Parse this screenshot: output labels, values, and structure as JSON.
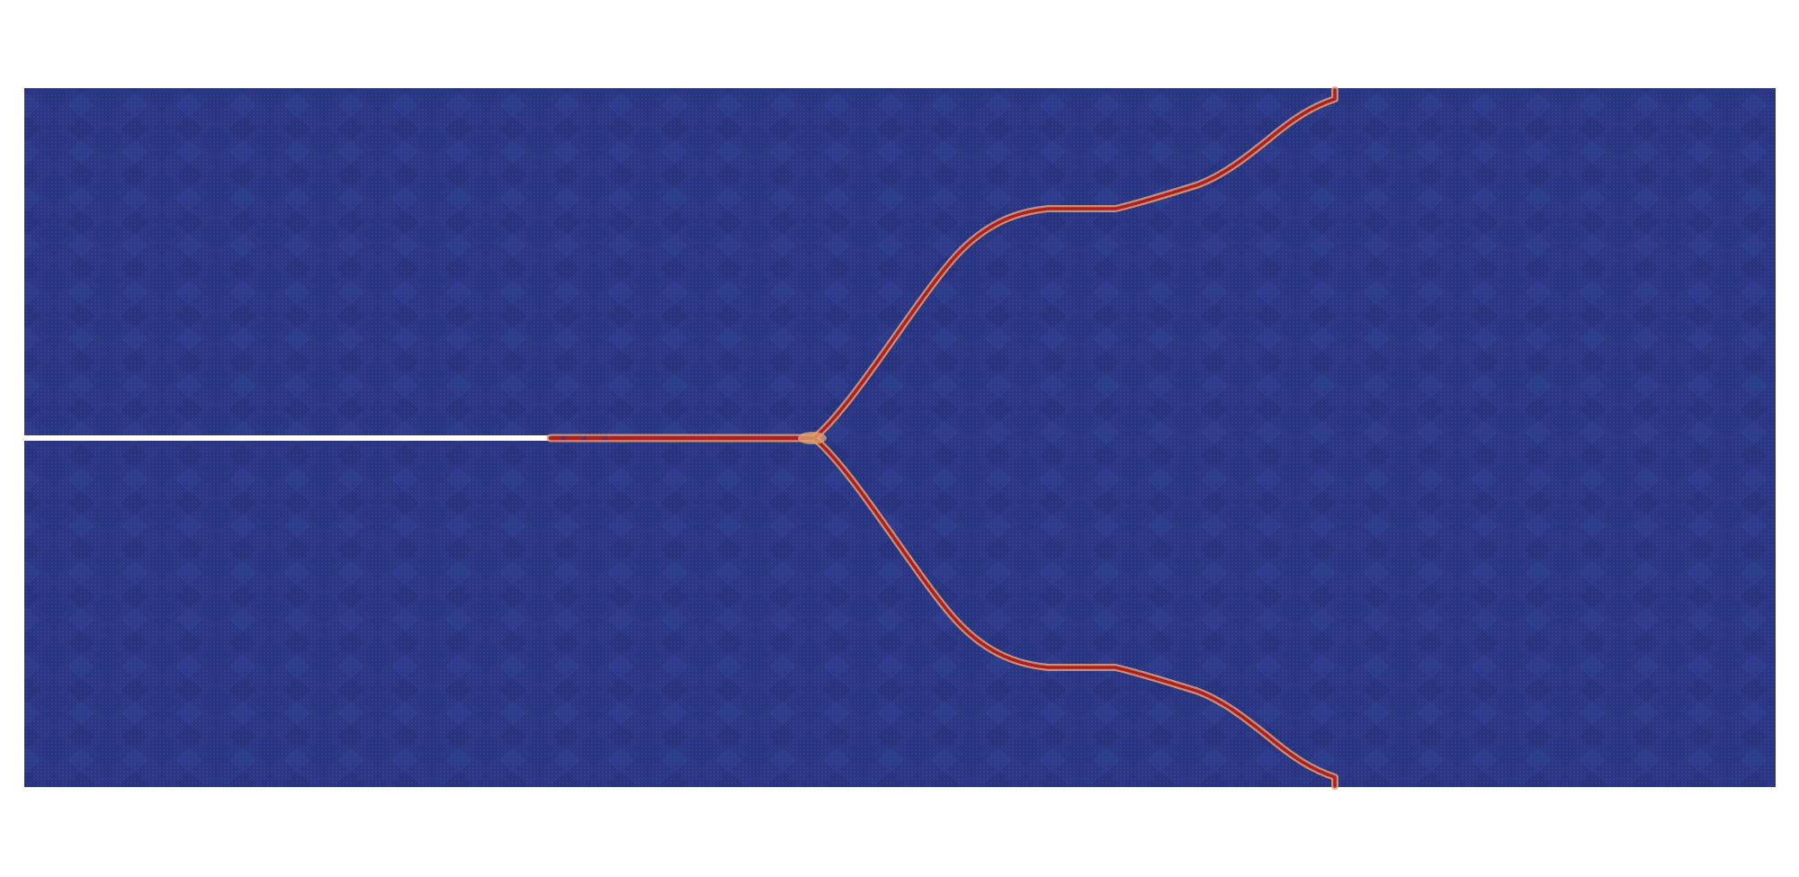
{
  "figure": {
    "description_type": "fracture-simulation-render",
    "colors": {
      "background": "#ffffff",
      "specimen": "#27347f",
      "specimen_texture_light": "#3a4a96",
      "specimen_texture_dark": "#1f2a70",
      "crack_core": "#b01d22",
      "crack_halo": "#e0a070",
      "pre_crack": "#ffffff"
    }
  }
}
